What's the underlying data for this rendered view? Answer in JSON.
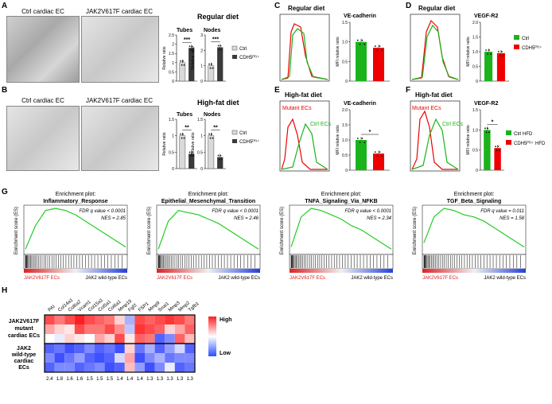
{
  "panel_labels": {
    "A": "A",
    "B": "B",
    "C": "C",
    "D": "D",
    "E": "E",
    "F": "F",
    "G": "G",
    "H": "H"
  },
  "panelA": {
    "img_ctrl": "Ctrl cardiac EC",
    "img_jak": "JAK2V617F cardiac EC",
    "diet": "Regular diet",
    "tubes_title": "Tubes",
    "nodes_title": "Nodes",
    "ylabel": "Relative ratio",
    "sig_tubes": "***",
    "sig_nodes": "***",
    "legend_ctrl": "Ctrl",
    "legend_mut": "CDH5ᴾᶠ¹⁺",
    "tubes": {
      "ctrl": 1.0,
      "mut": 1.8,
      "ymax": 2.5,
      "ticks": [
        "0",
        "0.5",
        "1",
        "1.5",
        "2",
        "2.5"
      ]
    },
    "nodes": {
      "ctrl": 1.0,
      "mut": 2.2,
      "ymax": 3,
      "ticks": [
        "0",
        "1",
        "2",
        "3"
      ]
    }
  },
  "panelB": {
    "img_ctrl": "Ctrl cardiac EC",
    "img_jak": "JAK2V617F cardiac EC",
    "diet": "High-fat diet",
    "tubes_title": "Tubes",
    "nodes_title": "Nodes",
    "ylabel": "Relative ratio",
    "sig_tubes": "**",
    "sig_nodes": "**",
    "legend_ctrl": "Ctrl",
    "legend_mut": "CDH5ᴾᶠ¹⁺",
    "tubes": {
      "ctrl": 1.0,
      "mut": 0.45,
      "ymax": 1.5,
      "ticks": [
        "0",
        "0.5",
        "1",
        "1.5"
      ]
    },
    "nodes": {
      "ctrl": 1.0,
      "mut": 0.35,
      "ymax": 1.5,
      "ticks": [
        "0",
        "0.5",
        "1",
        "1.5"
      ]
    }
  },
  "panelC": {
    "diet": "Regular diet",
    "title": "VE-cadherin",
    "ylabel": "MFI relative ratio",
    "ctrl": 1.0,
    "mut": 0.85,
    "ymax": 1.5,
    "ticks": [
      "0",
      "0.5",
      "1.0",
      "1.5"
    ]
  },
  "panelD": {
    "diet": "Regular diet",
    "title": "VEGF-R2",
    "ylabel": "MFI relative ratio",
    "ctrl": 1.0,
    "mut": 0.95,
    "ymax": 2.0,
    "ticks": [
      "0",
      "0.5",
      "1.0",
      "1.5",
      "2.0"
    ],
    "legend_ctrl": "Ctrl",
    "legend_mut": "CDH5ᴾᶠ¹⁺"
  },
  "panelE": {
    "diet": "High-fat diet",
    "title": "VE-cadherin",
    "ylabel": "MFI relative ratio",
    "mutant_label": "Mutant ECs",
    "ctrl_label": "Ctrl ECs",
    "sig": "*",
    "ctrl": 1.0,
    "mut": 0.55,
    "ymax": 2.0,
    "ticks": [
      "0",
      "0.5",
      "1.0",
      "1.5",
      "2.0"
    ]
  },
  "panelF": {
    "diet": "High-fat diet",
    "title": "VEGF-R2",
    "ylabel": "MFI relative ratio",
    "mutant_label": "Mutant ECs",
    "ctrl_label": "Ctrl ECs",
    "sig": "*",
    "ctrl": 1.0,
    "mut": 0.55,
    "ymax": 1.5,
    "ticks": [
      "0",
      "0.5",
      "1.0",
      "1.5"
    ],
    "legend_ctrl": "Ctrl HFD",
    "legend_mut": "CDH5ᴾᶠ¹⁺ HFD"
  },
  "panelG": {
    "ylabel": "Enrichment score (ES)",
    "left": "JAK2V617F ECs",
    "right": "JAK2 wild-type ECs",
    "plots": [
      {
        "title1": "Enrichment plot:",
        "title2": "Inflammatory_Response",
        "fdr": "FDR q value < 0.0001",
        "nes": "NES = 2.85"
      },
      {
        "title1": "Enrichment plot:",
        "title2": "Epithelial_Mesenchymal_Transition",
        "fdr": "FDR q value < 0.0001",
        "nes": "NES = 2.46"
      },
      {
        "title1": "Enrichment plot:",
        "title2": "TNFA_Signaling_Via_NFKB",
        "fdr": "FDR q value < 0.0001",
        "nes": "NES = 2.34"
      },
      {
        "title1": "Enrichment plot:",
        "title2": "TGF_Beta_Signaling",
        "fdr": "FDR q value = 0.011",
        "nes": "NES = 1.58"
      }
    ]
  },
  "panelH": {
    "genes": [
      "PAI",
      "Col14a1",
      "Col6a2",
      "Vcam1",
      "Col15a1",
      "Col5a1",
      "Col6a1",
      "Mmp19",
      "Fgf2",
      "FSP1",
      "Mmp9",
      "Snai1",
      "Mmp3",
      "Mmp2",
      "Tgfb1"
    ],
    "fold": [
      "2.4",
      "1.8",
      "1.6",
      "1.6",
      "1.5",
      "1.5",
      "1.5",
      "1.4",
      "1.4",
      "1.4",
      "1.3",
      "1.3",
      "1.3",
      "1.3",
      "1.3"
    ],
    "group1": "JAK2V617F mutant cardiac ECs",
    "group2": "JAK2 wild-type cardiac ECs",
    "legend_high": "High",
    "legend_low": "Low",
    "values": [
      [
        0.9,
        0.8,
        0.9,
        1.0,
        0.9,
        0.85,
        0.8,
        0.6,
        0.3,
        0.9,
        0.85,
        0.9,
        0.95,
        0.9,
        0.8
      ],
      [
        0.7,
        0.6,
        0.55,
        0.9,
        0.8,
        0.8,
        0.9,
        0.75,
        0.35,
        0.95,
        0.9,
        0.85,
        0.6,
        0.7,
        0.85
      ],
      [
        0.5,
        0.45,
        0.6,
        0.55,
        0.5,
        0.7,
        0.6,
        0.9,
        0.55,
        0.85,
        0.8,
        0.1,
        0.2,
        0.85,
        0.65
      ],
      [
        0.1,
        0.15,
        0.05,
        0.1,
        0.2,
        0.1,
        0.15,
        0.05,
        0.6,
        0.15,
        0.3,
        0.1,
        0.25,
        0.4,
        0.1
      ],
      [
        0.2,
        0.05,
        0.15,
        0.25,
        0.1,
        0.05,
        0.1,
        0.4,
        0.7,
        0.05,
        0.2,
        0.3,
        0.15,
        0.2,
        0.2
      ],
      [
        0.1,
        0.2,
        0.2,
        0.1,
        0.15,
        0.2,
        0.05,
        0.1,
        0.65,
        0.25,
        0.05,
        0.2,
        0.45,
        0.1,
        0.15
      ]
    ]
  }
}
